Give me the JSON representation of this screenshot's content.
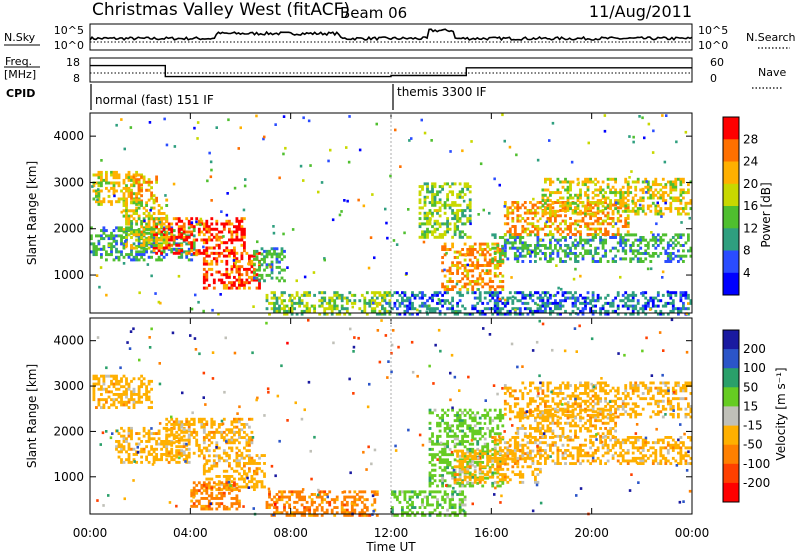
{
  "header": {
    "title": "Christmas Valley West (fitACF)",
    "beam": "Beam 06",
    "date": "11/Aug/2011"
  },
  "top_panels": {
    "nsky_label": "N.Sky",
    "nsky_ticks": [
      "10^5",
      "10^0"
    ],
    "nsearch_label": "N.Search",
    "freq_label_1": "Freq.",
    "freq_label_2": "[MHz]",
    "freq_ticks": [
      "18",
      "8"
    ],
    "nave_label": "Nave",
    "nave_ticks": [
      "60",
      "0"
    ],
    "cpid_label": "CPID",
    "cpid_modes": [
      "normal (fast) 151 IF",
      "themis 3300 IF"
    ]
  },
  "axes": {
    "ylabel": "Slant Range [km]",
    "xlabel": "Time UT",
    "y_ticks": [
      "1000",
      "2000",
      "3000",
      "4000"
    ],
    "x_ticks": [
      "00:00",
      "04:00",
      "08:00",
      "12:00",
      "16:00",
      "20:00",
      "00:00"
    ]
  },
  "colorbars": {
    "power": {
      "label": "Power [dB]",
      "ticks": [
        "4",
        "8",
        "12",
        "16",
        "20",
        "24",
        "28"
      ],
      "colors": [
        "#0000ff",
        "#2a4cff",
        "#2f9f7f",
        "#4fbf2f",
        "#c8d800",
        "#ffb000",
        "#ff7000",
        "#ff0000"
      ]
    },
    "velocity": {
      "label": "Velocity [m s⁻¹]",
      "ticks": [
        "200",
        "100",
        "50",
        "15",
        "-15",
        "-50",
        "-100",
        "-200"
      ],
      "colors": [
        "#1a1aa0",
        "#2b55c8",
        "#2aa06a",
        "#66cc22",
        "#c0c0b8",
        "#ffb000",
        "#ff8000",
        "#ff4000",
        "#ff0000"
      ]
    }
  },
  "chart_data": {
    "type": "heatmap",
    "x_range_hours": [
      0,
      24
    ],
    "y_range_km": [
      180,
      4500
    ],
    "cpid_switch_hours": [
      12
    ],
    "frequency_mhz_segments": [
      {
        "from": 0,
        "to": 3,
        "value": 15
      },
      {
        "from": 3,
        "to": 12,
        "value": 10
      },
      {
        "from": 12,
        "to": 15,
        "value": 10.5
      },
      {
        "from": 15,
        "to": 24,
        "value": 14
      }
    ],
    "power_regions": [
      {
        "t": [
          0.1,
          2.1
        ],
        "r": [
          2550,
          3250
        ],
        "db": 20
      },
      {
        "t": [
          1.6,
          2.7
        ],
        "r": [
          2600,
          3150
        ],
        "db": 24
      },
      {
        "t": [
          0.0,
          4.2
        ],
        "r": [
          1350,
          2050
        ],
        "db": 12
      },
      {
        "t": [
          2.5,
          6.2
        ],
        "r": [
          1450,
          2250
        ],
        "db": 28
      },
      {
        "t": [
          4.5,
          6.8
        ],
        "r": [
          700,
          1500
        ],
        "db": 28
      },
      {
        "t": [
          1.4,
          3.1
        ],
        "r": [
          1600,
          2650
        ],
        "db": 20
      },
      {
        "t": [
          6.5,
          7.8
        ],
        "r": [
          900,
          1600
        ],
        "db": 12
      },
      {
        "t": [
          7.0,
          12.0
        ],
        "r": [
          180,
          650
        ],
        "db": 16
      },
      {
        "t": [
          13.2,
          15.2
        ],
        "r": [
          1800,
          3000
        ],
        "db": 16
      },
      {
        "t": [
          14.0,
          16.5
        ],
        "r": [
          700,
          1700
        ],
        "db": 24
      },
      {
        "t": [
          16.0,
          24.0
        ],
        "r": [
          1300,
          1900
        ],
        "db": 12
      },
      {
        "t": [
          16.5,
          21.5
        ],
        "r": [
          1900,
          2600
        ],
        "db": 24
      },
      {
        "t": [
          18.0,
          24.0
        ],
        "r": [
          2300,
          3100
        ],
        "db": 20
      },
      {
        "t": [
          12.0,
          24.0
        ],
        "r": [
          180,
          650
        ],
        "db": 8
      }
    ],
    "velocity_regions": [
      {
        "t": [
          0.1,
          2.5
        ],
        "r": [
          2550,
          3250
        ],
        "v": -15
      },
      {
        "t": [
          1.0,
          4.0
        ],
        "r": [
          1350,
          2100
        ],
        "v": -15
      },
      {
        "t": [
          3.0,
          6.5
        ],
        "r": [
          1450,
          2300
        ],
        "v": -15
      },
      {
        "t": [
          4.5,
          7.0
        ],
        "r": [
          700,
          1500
        ],
        "v": -15
      },
      {
        "t": [
          4.0,
          6.0
        ],
        "r": [
          300,
          900
        ],
        "v": -50
      },
      {
        "t": [
          7.0,
          11.5
        ],
        "r": [
          180,
          700
        ],
        "v": -50
      },
      {
        "t": [
          12.0,
          15.0
        ],
        "r": [
          180,
          700
        ],
        "v": 15
      },
      {
        "t": [
          13.5,
          16.5
        ],
        "r": [
          800,
          2500
        ],
        "v": 15
      },
      {
        "t": [
          14.5,
          18.0
        ],
        "r": [
          900,
          1600
        ],
        "v": -15
      },
      {
        "t": [
          16.0,
          24.0
        ],
        "r": [
          1300,
          1900
        ],
        "v": -15
      },
      {
        "t": [
          16.5,
          24.0
        ],
        "r": [
          2300,
          3100
        ],
        "v": -15
      },
      {
        "t": [
          17.0,
          21.0
        ],
        "r": [
          1900,
          2500
        ],
        "v": -15
      }
    ]
  }
}
